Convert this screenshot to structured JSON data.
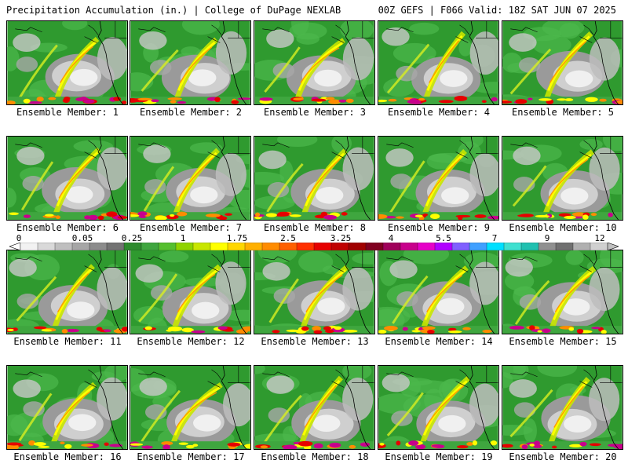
{
  "header": {
    "left_title": "Precipitation Accumulation (in.) | College of DuPage NEXLAB",
    "right_title": "00Z GEFS | F066 Valid: 18Z SAT JUN 07 2025"
  },
  "members": [
    {
      "label": "Ensemble Member: 1"
    },
    {
      "label": "Ensemble Member: 2"
    },
    {
      "label": "Ensemble Member: 3"
    },
    {
      "label": "Ensemble Member: 4"
    },
    {
      "label": "Ensemble Member: 5"
    },
    {
      "label": "Ensemble Member: 6"
    },
    {
      "label": "Ensemble Member: 7"
    },
    {
      "label": "Ensemble Member: 8"
    },
    {
      "label": "Ensemble Member: 9"
    },
    {
      "label": "Ensemble Member: 10"
    },
    {
      "label": "Ensemble Member: 11"
    },
    {
      "label": "Ensemble Member: 12"
    },
    {
      "label": "Ensemble Member: 13"
    },
    {
      "label": "Ensemble Member: 14"
    },
    {
      "label": "Ensemble Member: 15"
    },
    {
      "label": "Ensemble Member: 16"
    },
    {
      "label": "Ensemble Member: 17"
    },
    {
      "label": "Ensemble Member: 18"
    },
    {
      "label": "Ensemble Member: 19"
    },
    {
      "label": "Ensemble Member: 20"
    }
  ],
  "colorbar": {
    "ticks": [
      "0",
      "0.05",
      "0.25",
      "1",
      "1.75",
      "2.5",
      "3.25",
      "4",
      "5.5",
      "7",
      "9",
      "12"
    ],
    "colors": [
      "#f2f2f2",
      "#d9d9d9",
      "#bfbfbf",
      "#a6a6a6",
      "#8c8c8c",
      "#737373",
      "#2e8b2e",
      "#3fa63f",
      "#55bf2f",
      "#8fd400",
      "#c8e600",
      "#ffff00",
      "#ffd700",
      "#ffb000",
      "#ff8c00",
      "#ff6000",
      "#ff3000",
      "#e60000",
      "#c00000",
      "#a00000",
      "#800020",
      "#a0005a",
      "#c8008c",
      "#e600c8",
      "#b000ff",
      "#8060ff",
      "#40a0ff",
      "#00e0ff",
      "#40e0d0",
      "#20c0b0",
      "#909090",
      "#707070",
      "#b0b0b0",
      "#d0d0d0"
    ]
  }
}
